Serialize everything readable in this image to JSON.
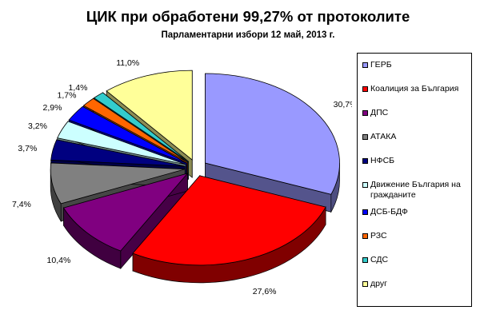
{
  "title": "ЦИК при обработени 99,27% от протоколите",
  "subtitle": "Парламентарни избори 12 май, 2013 г.",
  "chart_data": {
    "type": "pie",
    "style": "3d-exploded",
    "legend_position": "right",
    "slices": [
      {
        "label": "ГЕРБ",
        "value": 30.7,
        "display": "30,7%",
        "color": "#9999FF"
      },
      {
        "label": "Коалиция за България",
        "value": 27.6,
        "display": "27,6%",
        "color": "#FF0000"
      },
      {
        "label": "ДПС",
        "value": 10.4,
        "display": "10,4%",
        "color": "#800080"
      },
      {
        "label": "АТАКА",
        "value": 7.4,
        "display": "7,4%",
        "color": "#808080"
      },
      {
        "label": "НФСБ",
        "value": 3.7,
        "display": "3,7%",
        "color": "#000080"
      },
      {
        "label": "Движение България на гражданите",
        "value": 3.2,
        "display": "3,2%",
        "color": "#CCFFFF"
      },
      {
        "label": "ДСБ-БДФ",
        "value": 2.9,
        "display": "2,9%",
        "color": "#0000FF"
      },
      {
        "label": "РЗС",
        "value": 1.7,
        "display": "1,7%",
        "color": "#FF6600"
      },
      {
        "label": "СДС",
        "value": 1.4,
        "display": "1,4%",
        "color": "#33CCCC"
      },
      {
        "label": "друг",
        "value": 11.0,
        "display": "11,0%",
        "color": "#FFFF99"
      }
    ]
  }
}
